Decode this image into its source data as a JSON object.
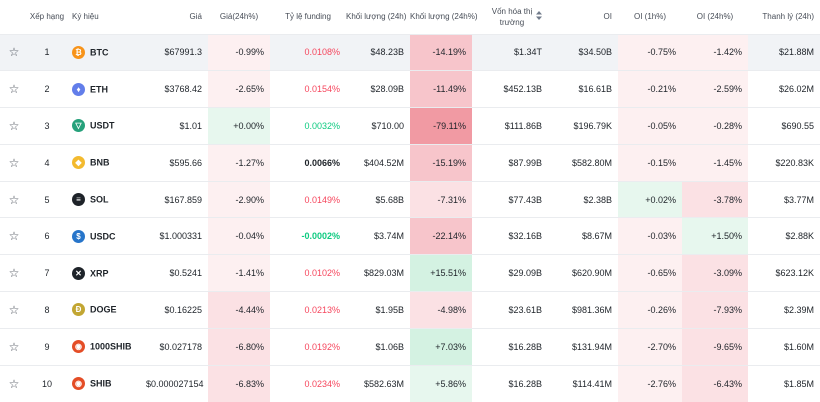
{
  "header": {
    "rank": "Xếp hạng",
    "symbol": "Ký hiệu",
    "price": "Giá",
    "price_change": "Giá(24h%)",
    "funding": "Tỷ lệ funding",
    "volume": "Khối lượng (24h)",
    "volume_change": "Khối lượng (24h%)",
    "market_cap": "Vốn hóa thị trường",
    "oi": "OI",
    "oi_1h": "OI (1h%)",
    "oi_24h": "OI (24h%)",
    "liquidation": "Thanh lý (24h)"
  },
  "rows": [
    {
      "rank": "1",
      "symbol": "BTC",
      "icon": "bitcoin-icon",
      "price": "$67991.3",
      "change": "-0.99%",
      "funding": "0.0108%",
      "volume": "$48.23B",
      "vol_change": "-14.19%",
      "mcap": "$1.34T",
      "oi": "$34.50B",
      "oi1h": "-0.75%",
      "oi24h": "-1.42%",
      "liq": "$21.88M"
    },
    {
      "rank": "2",
      "symbol": "ETH",
      "icon": "ethereum-icon",
      "price": "$3768.42",
      "change": "-2.65%",
      "funding": "0.0154%",
      "volume": "$28.09B",
      "vol_change": "-11.49%",
      "mcap": "$452.13B",
      "oi": "$16.61B",
      "oi1h": "-0.21%",
      "oi24h": "-2.59%",
      "liq": "$26.02M"
    },
    {
      "rank": "3",
      "symbol": "USDT",
      "icon": "tether-icon",
      "price": "$1.01",
      "change": "+0.00%",
      "funding": "0.0032%",
      "volume": "$710.00",
      "vol_change": "-79.11%",
      "mcap": "$111.86B",
      "oi": "$196.79K",
      "oi1h": "-0.05%",
      "oi24h": "-0.28%",
      "liq": "$690.55"
    },
    {
      "rank": "4",
      "symbol": "BNB",
      "icon": "bnb-icon",
      "price": "$595.66",
      "change": "-1.27%",
      "funding": "0.0066%",
      "volume": "$404.52M",
      "vol_change": "-15.19%",
      "mcap": "$87.99B",
      "oi": "$582.80M",
      "oi1h": "-0.15%",
      "oi24h": "-1.45%",
      "liq": "$220.83K"
    },
    {
      "rank": "5",
      "symbol": "SOL",
      "icon": "solana-icon",
      "price": "$167.859",
      "change": "-2.90%",
      "funding": "0.0149%",
      "volume": "$5.68B",
      "vol_change": "-7.31%",
      "mcap": "$77.43B",
      "oi": "$2.38B",
      "oi1h": "+0.02%",
      "oi24h": "-3.78%",
      "liq": "$3.77M"
    },
    {
      "rank": "6",
      "symbol": "USDC",
      "icon": "usdc-icon",
      "price": "$1.000331",
      "change": "-0.04%",
      "funding": "-0.0002%",
      "volume": "$3.74M",
      "vol_change": "-22.14%",
      "mcap": "$32.16B",
      "oi": "$8.67M",
      "oi1h": "-0.03%",
      "oi24h": "+1.50%",
      "liq": "$2.88K"
    },
    {
      "rank": "7",
      "symbol": "XRP",
      "icon": "xrp-icon",
      "price": "$0.5241",
      "change": "-1.41%",
      "funding": "0.0102%",
      "volume": "$829.03M",
      "vol_change": "+15.51%",
      "mcap": "$29.09B",
      "oi": "$620.90M",
      "oi1h": "-0.65%",
      "oi24h": "-3.09%",
      "liq": "$623.12K"
    },
    {
      "rank": "8",
      "symbol": "DOGE",
      "icon": "doge-icon",
      "price": "$0.16225",
      "change": "-4.44%",
      "funding": "0.0213%",
      "volume": "$1.95B",
      "vol_change": "-4.98%",
      "mcap": "$23.61B",
      "oi": "$981.36M",
      "oi1h": "-0.26%",
      "oi24h": "-7.93%",
      "liq": "$2.39M"
    },
    {
      "rank": "9",
      "symbol": "1000SHIB",
      "icon": "shiba-icon",
      "price": "$0.027178",
      "change": "-6.80%",
      "funding": "0.0192%",
      "volume": "$1.06B",
      "vol_change": "+7.03%",
      "mcap": "$16.28B",
      "oi": "$131.94M",
      "oi1h": "-2.70%",
      "oi24h": "-9.65%",
      "liq": "$1.60M"
    },
    {
      "rank": "10",
      "symbol": "SHIB",
      "icon": "shiba-icon",
      "price": "$0.000027154",
      "change": "-6.83%",
      "funding": "0.0234%",
      "volume": "$582.63M",
      "vol_change": "+5.86%",
      "mcap": "$16.28B",
      "oi": "$114.41M",
      "oi1h": "-2.76%",
      "oi24h": "-6.43%",
      "liq": "$1.85M"
    }
  ],
  "colors": {
    "up": "#0ecb81",
    "down": "#f6465d",
    "btc": "#f7931a",
    "eth": "#627eea",
    "usdt": "#26a17b",
    "bnb": "#f3ba2f",
    "usdc": "#2775ca",
    "doge": "#c2a633",
    "shib": "#e44d26"
  }
}
